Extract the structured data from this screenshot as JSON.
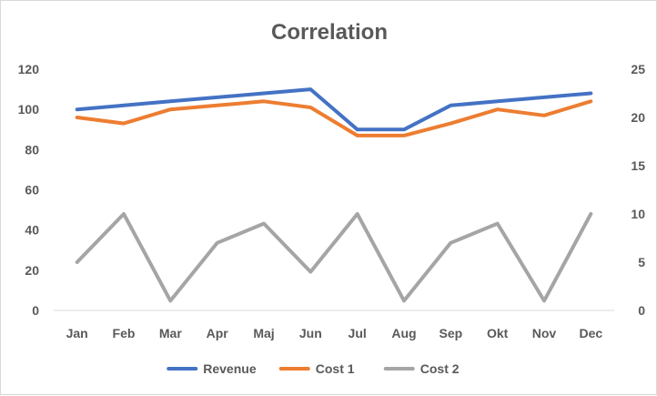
{
  "chart_data": {
    "type": "line",
    "title": "Correlation",
    "categories": [
      "Jan",
      "Feb",
      "Mar",
      "Apr",
      "Maj",
      "Jun",
      "Jul",
      "Aug",
      "Sep",
      "Okt",
      "Nov",
      "Dec"
    ],
    "series": [
      {
        "name": "Revenue",
        "axis": "left",
        "color": "#4472C4",
        "values": [
          100,
          102,
          104,
          106,
          108,
          110,
          90,
          90,
          102,
          104,
          106,
          108
        ]
      },
      {
        "name": "Cost 1",
        "axis": "left",
        "color": "#ED7D31",
        "values": [
          96,
          93,
          100,
          102,
          104,
          101,
          87,
          87,
          93,
          100,
          97,
          104
        ]
      },
      {
        "name": "Cost 2",
        "axis": "right",
        "color": "#A5A5A5",
        "values": [
          5,
          10,
          1,
          7,
          9,
          4,
          10,
          1,
          7,
          9,
          1,
          10
        ]
      }
    ],
    "y_left": {
      "ylim": [
        0,
        120
      ],
      "ticks": [
        "0",
        "20",
        "40",
        "60",
        "80",
        "100",
        "120"
      ]
    },
    "y_right": {
      "ylim": [
        0,
        25
      ],
      "ticks": [
        "0",
        "5",
        "10",
        "15",
        "20",
        "25"
      ]
    },
    "grid": false,
    "legend": "bottom"
  }
}
